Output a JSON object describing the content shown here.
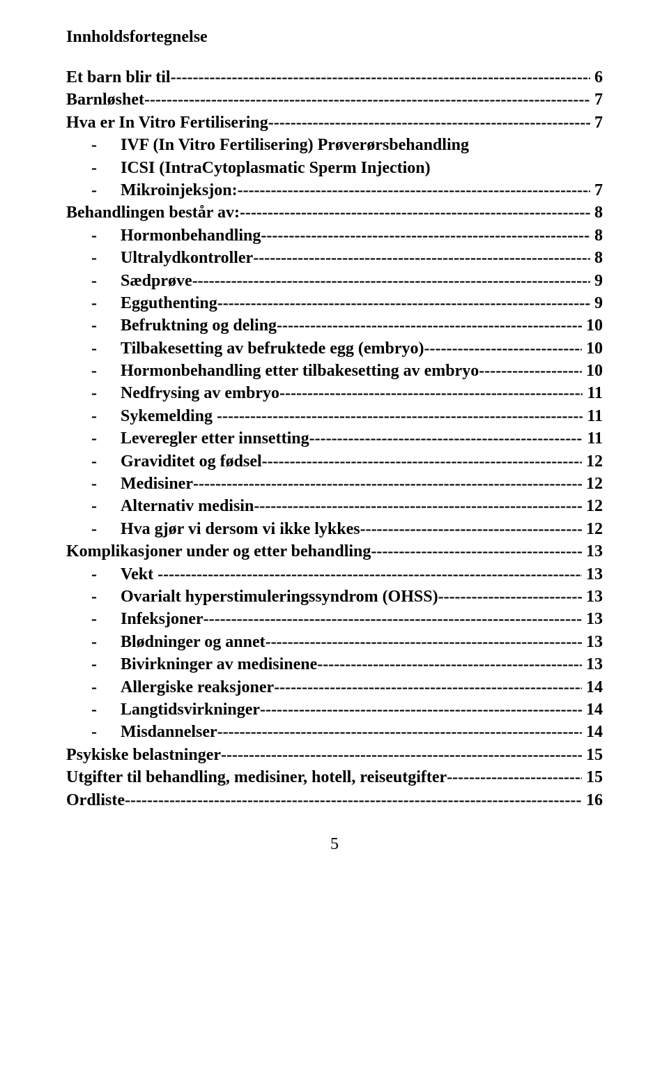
{
  "title": "Innholdsfortegnelse",
  "page_number": "5",
  "fill_char": "-",
  "entries": [
    {
      "level": 0,
      "label": "Et barn blir til",
      "page": "6"
    },
    {
      "level": 0,
      "label": "Barnløshet ",
      "page": "7"
    },
    {
      "level": 0,
      "label": "Hva er In Vitro Fertilisering ",
      "page": "7"
    },
    {
      "level": 1,
      "label": "IVF (In Vitro Fertilisering) Prøverørsbehandling",
      "page": ""
    },
    {
      "level": 1,
      "label": "ICSI (IntraCytoplasmatic Sperm Injection)",
      "page": ""
    },
    {
      "level": 1,
      "label": "Mikroinjeksjon:",
      "page": "7"
    },
    {
      "level": 0,
      "label": "Behandlingen består av:",
      "page": "8"
    },
    {
      "level": 1,
      "label": "Hormonbehandling ",
      "page": "8"
    },
    {
      "level": 1,
      "label": "Ultralydkontroller",
      "page": "8"
    },
    {
      "level": 1,
      "label": "Sædprøve",
      "page": "9"
    },
    {
      "level": 1,
      "label": "Egguthenting",
      "page": "9"
    },
    {
      "level": 1,
      "label": "Befruktning og deling",
      "page": "10"
    },
    {
      "level": 1,
      "label": "Tilbakesetting av befruktede egg (embryo) ",
      "page": "10"
    },
    {
      "level": 1,
      "label": "Hormonbehandling etter tilbakesetting av embryo",
      "page": "10"
    },
    {
      "level": 1,
      "label": "Nedfrysing av embryo",
      "page": "11"
    },
    {
      "level": 1,
      "label": "Sykemelding - ",
      "page": "11"
    },
    {
      "level": 1,
      "label": "Leveregler etter innsetting",
      "page": "11"
    },
    {
      "level": 1,
      "label": "Graviditet og fødsel ",
      "page": "12"
    },
    {
      "level": 1,
      "label": "Medisiner ",
      "page": "12"
    },
    {
      "level": 1,
      "label": "Alternativ medisin ",
      "page": "12"
    },
    {
      "level": 1,
      "label": "Hva gjør vi dersom vi ikke lykkes ",
      "page": "12"
    },
    {
      "level": 0,
      "label": "Komplikasjoner under og etter behandling ",
      "page": "13"
    },
    {
      "level": 1,
      "label": "Vekt - ",
      "page": "13"
    },
    {
      "level": 1,
      "label": "Ovarialt hyperstimuleringssyndrom (OHSS) ",
      "page": "13"
    },
    {
      "level": 1,
      "label": "Infeksjoner",
      "page": "13"
    },
    {
      "level": 1,
      "label": "Blødninger og annet",
      "page": "13"
    },
    {
      "level": 1,
      "label": "Bivirkninger av medisinene",
      "page": "13"
    },
    {
      "level": 1,
      "label": "Allergiske reaksjoner",
      "page": "14"
    },
    {
      "level": 1,
      "label": "Langtidsvirkninger",
      "page": "14"
    },
    {
      "level": 1,
      "label": "Misdannelser",
      "page": "14"
    },
    {
      "level": 0,
      "label": "Psykiske belastninger",
      "page": "15"
    },
    {
      "level": 0,
      "label": "Utgifter til behandling, medisiner, hotell, reiseutgifter",
      "page": "15"
    },
    {
      "level": 0,
      "label": "Ordliste",
      "page": "16"
    }
  ]
}
